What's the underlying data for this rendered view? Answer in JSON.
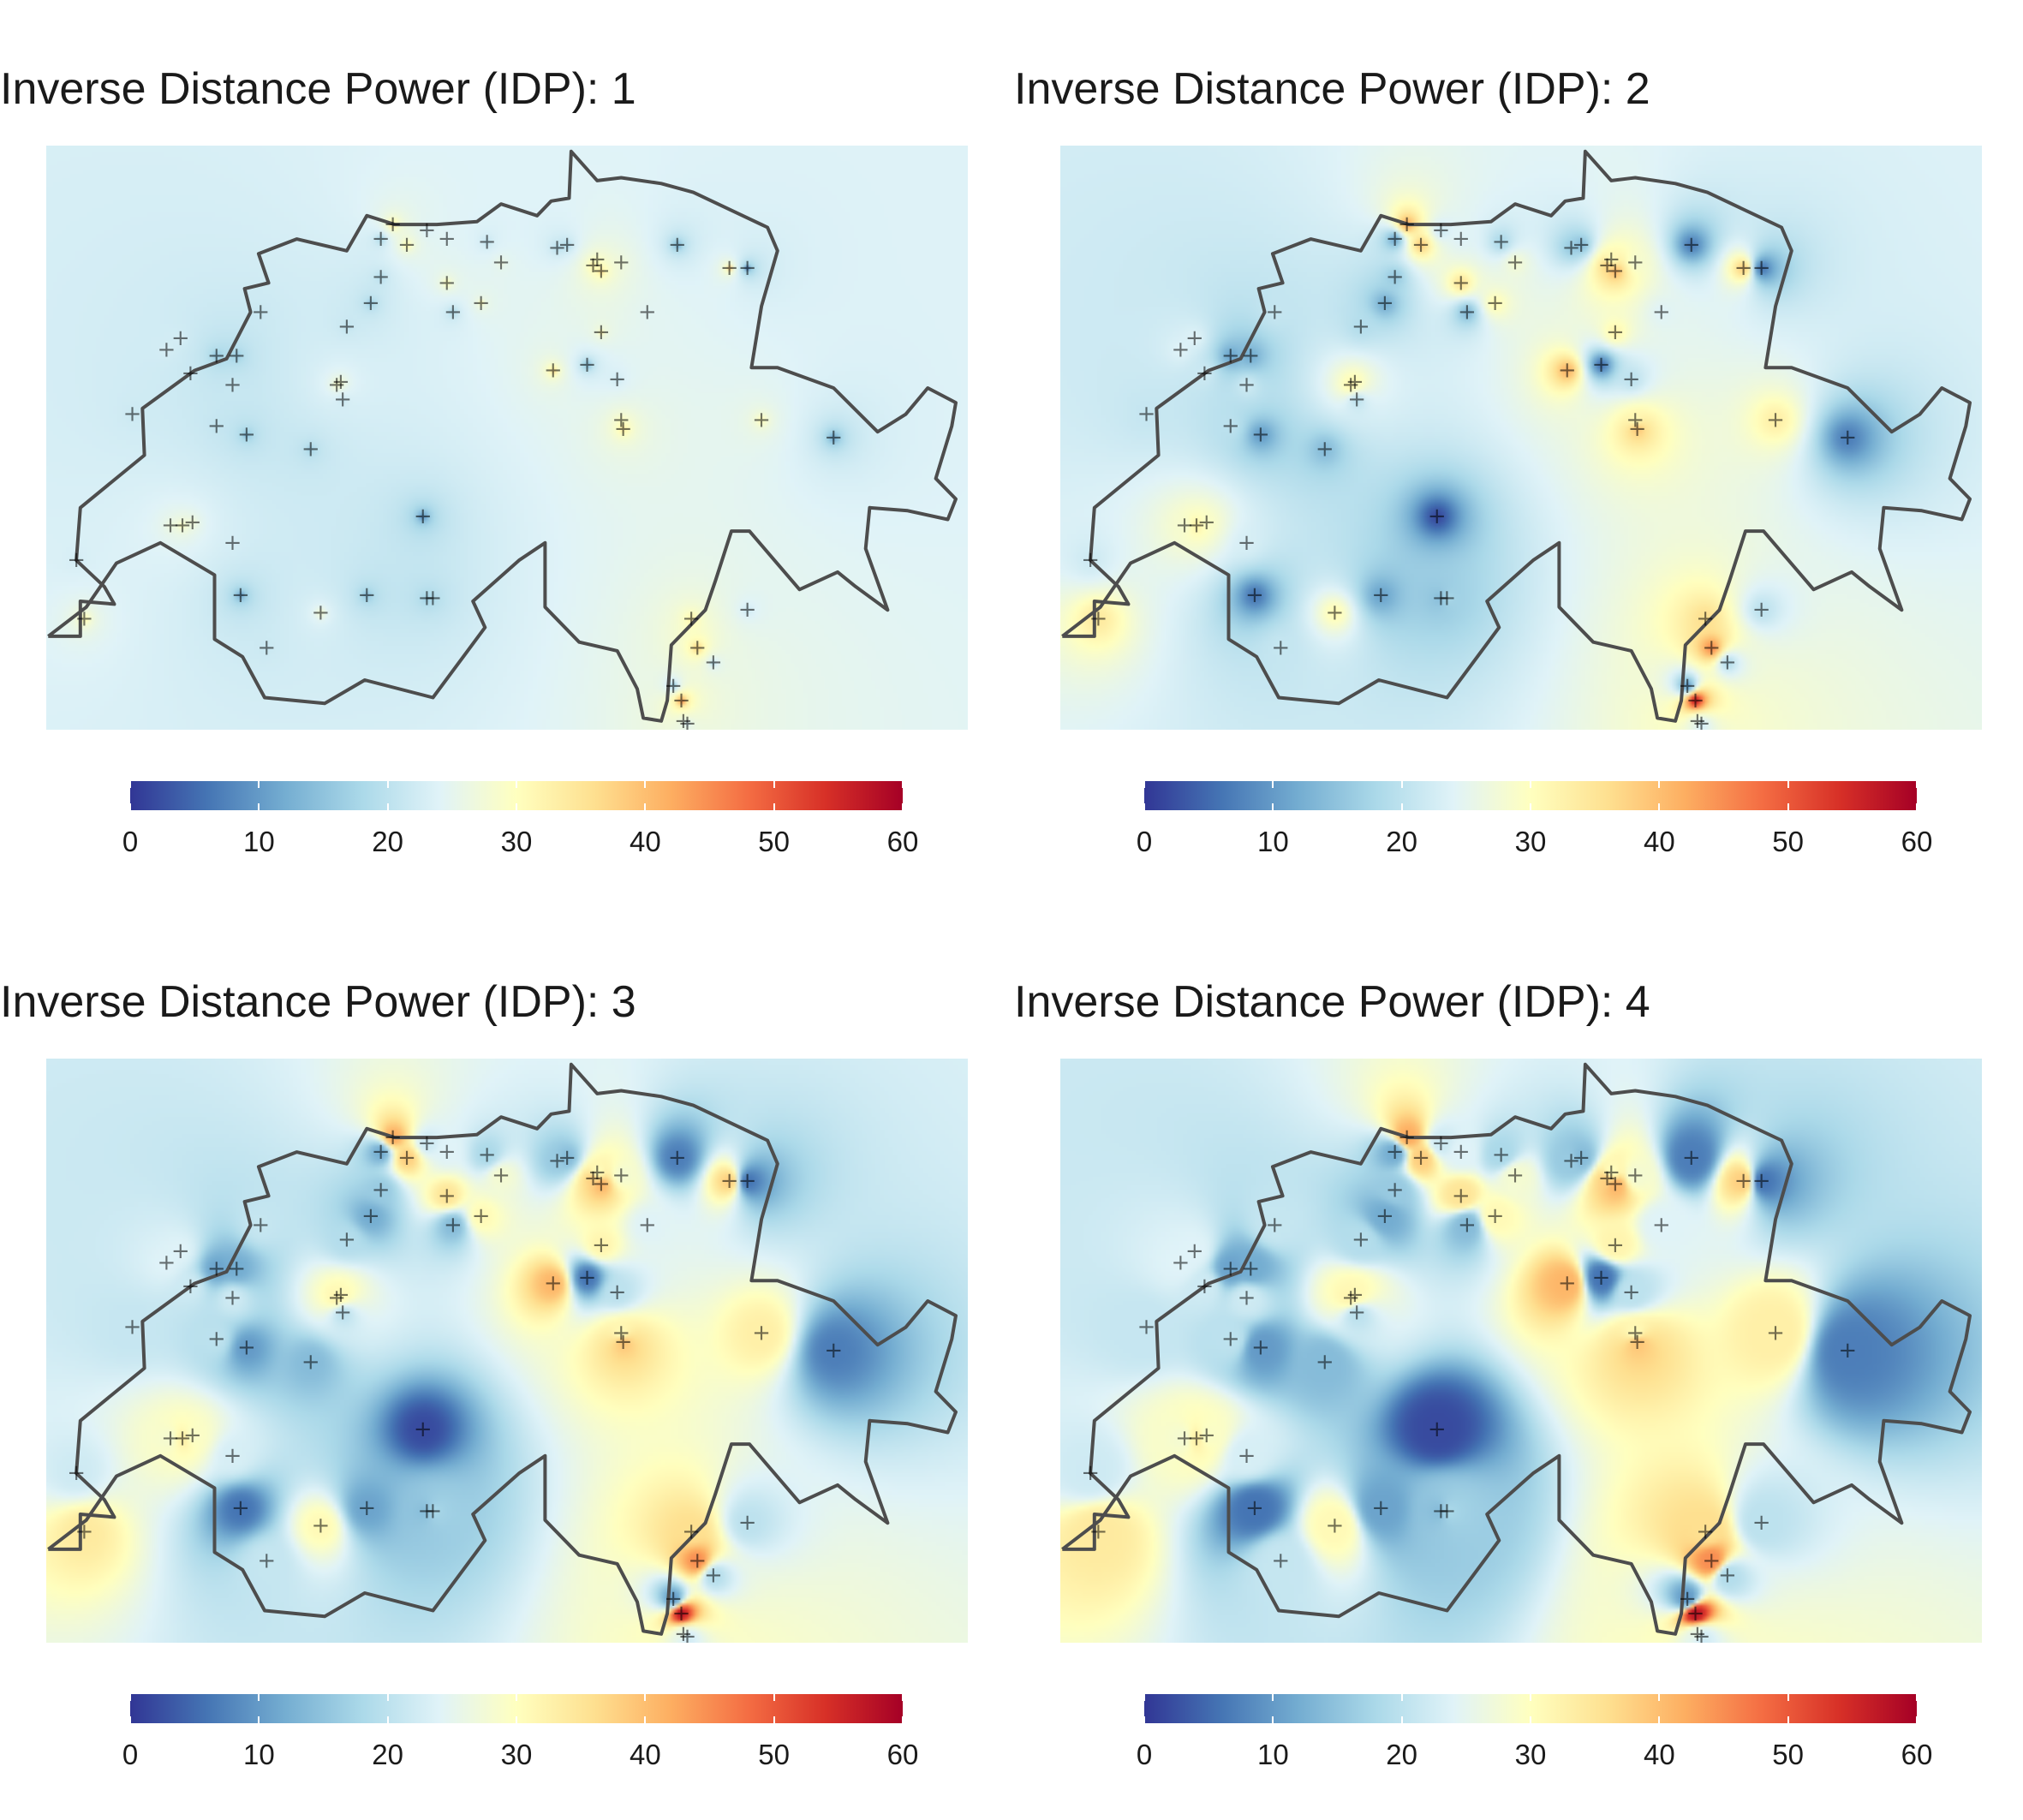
{
  "panels": [
    {
      "title": "Inverse Distance Power (IDP): 1",
      "idp": 1
    },
    {
      "title": "Inverse Distance Power (IDP): 2",
      "idp": 2
    },
    {
      "title": "Inverse Distance Power (IDP): 3",
      "idp": 3
    },
    {
      "title": "Inverse Distance Power (IDP): 4",
      "idp": 4
    }
  ],
  "legend": {
    "ticks": [
      "0",
      "10",
      "20",
      "30",
      "40",
      "50",
      "60"
    ],
    "range": [
      0,
      60
    ],
    "palette": [
      "#313695",
      "#4575b4",
      "#74add1",
      "#abd9e9",
      "#e0f3f8",
      "#ffffbf",
      "#fee090",
      "#fdae61",
      "#f46d43",
      "#d73027",
      "#a50026"
    ]
  },
  "map": {
    "region": "Switzerland",
    "marker": "+",
    "border_color": "#4d4d4d",
    "marker_color": "#000000"
  },
  "chart_data": {
    "type": "heatmap",
    "value_range": [
      0,
      60
    ],
    "stations": [
      {
        "lon": 6.14,
        "lat": 46.2,
        "v": 34
      },
      {
        "lon": 6.1,
        "lat": 46.4,
        "v": 22
      },
      {
        "lon": 6.63,
        "lat": 46.52,
        "v": 33
      },
      {
        "lon": 6.68,
        "lat": 46.53,
        "v": 29
      },
      {
        "lon": 6.57,
        "lat": 46.52,
        "v": 28
      },
      {
        "lon": 6.88,
        "lat": 46.46,
        "v": 23
      },
      {
        "lon": 6.92,
        "lat": 46.28,
        "v": 6
      },
      {
        "lon": 7.05,
        "lat": 46.1,
        "v": 21
      },
      {
        "lon": 7.32,
        "lat": 46.22,
        "v": 31
      },
      {
        "lon": 7.55,
        "lat": 46.28,
        "v": 11
      },
      {
        "lon": 7.85,
        "lat": 46.27,
        "v": 14
      },
      {
        "lon": 7.88,
        "lat": 46.27,
        "v": 18
      },
      {
        "lon": 7.83,
        "lat": 46.55,
        "v": 2
      },
      {
        "lon": 7.43,
        "lat": 46.95,
        "v": 20
      },
      {
        "lon": 7.27,
        "lat": 46.78,
        "v": 14
      },
      {
        "lon": 6.95,
        "lat": 46.83,
        "v": 10
      },
      {
        "lon": 6.88,
        "lat": 47.0,
        "v": 22
      },
      {
        "lon": 6.8,
        "lat": 46.86,
        "v": 20
      },
      {
        "lon": 6.38,
        "lat": 46.9,
        "v": 21
      },
      {
        "lon": 6.8,
        "lat": 47.1,
        "v": 11
      },
      {
        "lon": 6.9,
        "lat": 47.1,
        "v": 12
      },
      {
        "lon": 6.67,
        "lat": 47.04,
        "v": 22
      },
      {
        "lon": 6.55,
        "lat": 47.12,
        "v": 24
      },
      {
        "lon": 6.62,
        "lat": 47.16,
        "v": 24
      },
      {
        "lon": 7.02,
        "lat": 47.25,
        "v": 21
      },
      {
        "lon": 7.45,
        "lat": 47.2,
        "v": 19
      },
      {
        "lon": 7.57,
        "lat": 47.28,
        "v": 12
      },
      {
        "lon": 7.4,
        "lat": 47.0,
        "v": 32
      },
      {
        "lon": 7.42,
        "lat": 47.01,
        "v": 31
      },
      {
        "lon": 7.62,
        "lat": 47.37,
        "v": 16
      },
      {
        "lon": 7.75,
        "lat": 47.48,
        "v": 38
      },
      {
        "lon": 7.68,
        "lat": 47.55,
        "v": 42
      },
      {
        "lon": 7.62,
        "lat": 47.5,
        "v": 12
      },
      {
        "lon": 7.85,
        "lat": 47.53,
        "v": 22
      },
      {
        "lon": 7.95,
        "lat": 47.5,
        "v": 24
      },
      {
        "lon": 7.95,
        "lat": 47.35,
        "v": 35
      },
      {
        "lon": 7.98,
        "lat": 47.25,
        "v": 14
      },
      {
        "lon": 8.12,
        "lat": 47.28,
        "v": 31
      },
      {
        "lon": 8.22,
        "lat": 47.42,
        "v": 28
      },
      {
        "lon": 8.15,
        "lat": 47.49,
        "v": 18
      },
      {
        "lon": 8.5,
        "lat": 47.47,
        "v": 16
      },
      {
        "lon": 8.55,
        "lat": 47.48,
        "v": 14
      },
      {
        "lon": 8.68,
        "lat": 47.41,
        "v": 38
      },
      {
        "lon": 8.72,
        "lat": 47.39,
        "v": 41
      },
      {
        "lon": 8.82,
        "lat": 47.42,
        "v": 28
      },
      {
        "lon": 8.7,
        "lat": 47.43,
        "v": 30
      },
      {
        "lon": 9.1,
        "lat": 47.48,
        "v": 7
      },
      {
        "lon": 8.95,
        "lat": 47.25,
        "v": 24
      },
      {
        "lon": 8.72,
        "lat": 47.18,
        "v": 32
      },
      {
        "lon": 8.48,
        "lat": 47.05,
        "v": 41
      },
      {
        "lon": 8.65,
        "lat": 47.07,
        "v": 6
      },
      {
        "lon": 8.8,
        "lat": 47.02,
        "v": 20
      },
      {
        "lon": 8.82,
        "lat": 46.88,
        "v": 31
      },
      {
        "lon": 8.83,
        "lat": 46.85,
        "v": 39
      },
      {
        "lon": 9.36,
        "lat": 47.4,
        "v": 38
      },
      {
        "lon": 9.45,
        "lat": 47.4,
        "v": 6
      },
      {
        "lon": 9.52,
        "lat": 46.88,
        "v": 33
      },
      {
        "lon": 9.88,
        "lat": 46.82,
        "v": 7
      },
      {
        "lon": 9.17,
        "lat": 46.2,
        "v": 36
      },
      {
        "lon": 9.2,
        "lat": 46.1,
        "v": 45
      },
      {
        "lon": 9.28,
        "lat": 46.05,
        "v": 19
      },
      {
        "lon": 9.08,
        "lat": 45.97,
        "v": 10
      },
      {
        "lon": 9.12,
        "lat": 45.92,
        "v": 57
      },
      {
        "lon": 9.13,
        "lat": 45.85,
        "v": 26
      },
      {
        "lon": 9.15,
        "lat": 45.84,
        "v": 22
      },
      {
        "lon": 9.15,
        "lat": 45.68,
        "v": 31
      },
      {
        "lon": 9.45,
        "lat": 46.23,
        "v": 20
      }
    ]
  }
}
